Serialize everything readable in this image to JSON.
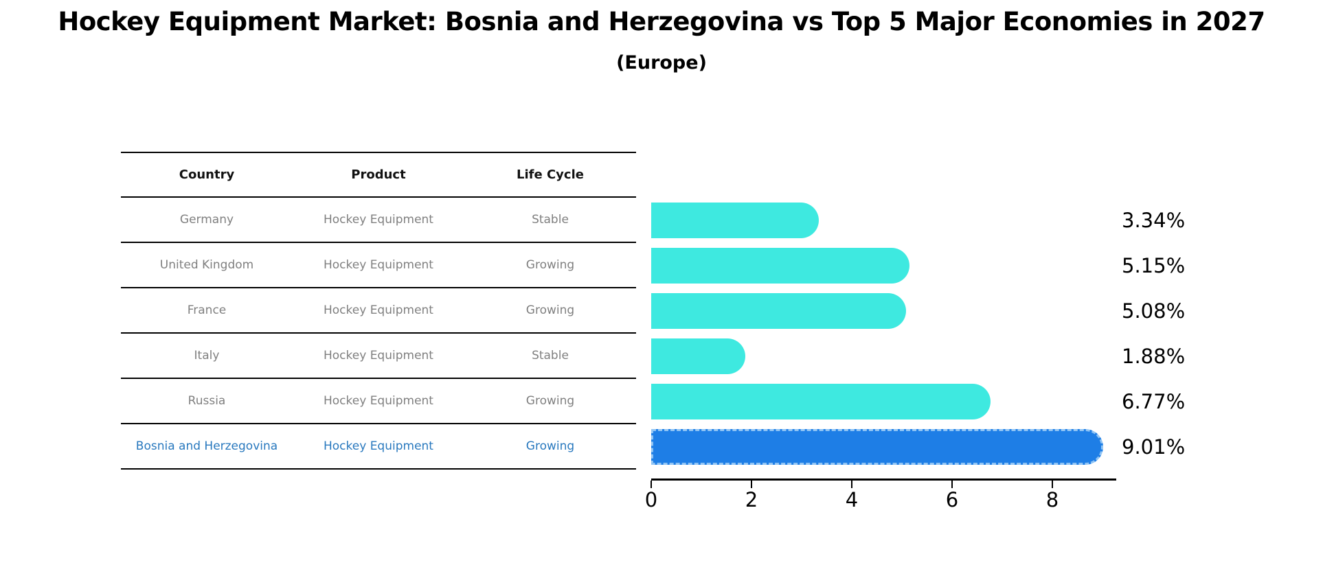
{
  "chart_data": {
    "type": "bar",
    "orientation": "horizontal",
    "title": "Hockey Equipment Market: Bosnia and Herzegovina vs Top 5 Major Economies in 2027",
    "subtitle": "(Europe)",
    "categories": [
      "Germany",
      "United Kingdom",
      "France",
      "Italy",
      "Russia",
      "Bosnia and Herzegovina"
    ],
    "values": [
      3.34,
      5.15,
      5.08,
      1.88,
      6.77,
      9.01
    ],
    "value_labels": [
      "3.34%",
      "5.15%",
      "5.08%",
      "1.88%",
      "6.77%",
      "9.01%"
    ],
    "highlighted_category": "Bosnia and Herzegovina",
    "x_ticks": [
      0,
      2,
      4,
      6,
      8
    ],
    "xlim": [
      0,
      9.4
    ],
    "grid": false,
    "legend": false,
    "colors": {
      "default_bar": "#3ee9e0",
      "highlight_bar": "#1e7ee6",
      "highlight_bar_edge": "#90c4f4",
      "highlight_text": "#2878be",
      "cell_text": "#7f7f7f",
      "axis": "#000000"
    }
  },
  "table": {
    "headers": [
      "Country",
      "Product",
      "Life Cycle"
    ],
    "rows": [
      {
        "country": "Germany",
        "product": "Hockey Equipment",
        "life_cycle": "Stable",
        "highlight": false
      },
      {
        "country": "United Kingdom",
        "product": "Hockey Equipment",
        "life_cycle": "Growing",
        "highlight": false
      },
      {
        "country": "France",
        "product": "Hockey Equipment",
        "life_cycle": "Growing",
        "highlight": false
      },
      {
        "country": "Italy",
        "product": "Hockey Equipment",
        "life_cycle": "Stable",
        "highlight": false
      },
      {
        "country": "Russia",
        "product": "Hockey Equipment",
        "life_cycle": "Growing",
        "highlight": false
      },
      {
        "country": "Bosnia and Herzegovina",
        "product": "Hockey Equipment",
        "life_cycle": "Growing",
        "highlight": true
      }
    ]
  }
}
